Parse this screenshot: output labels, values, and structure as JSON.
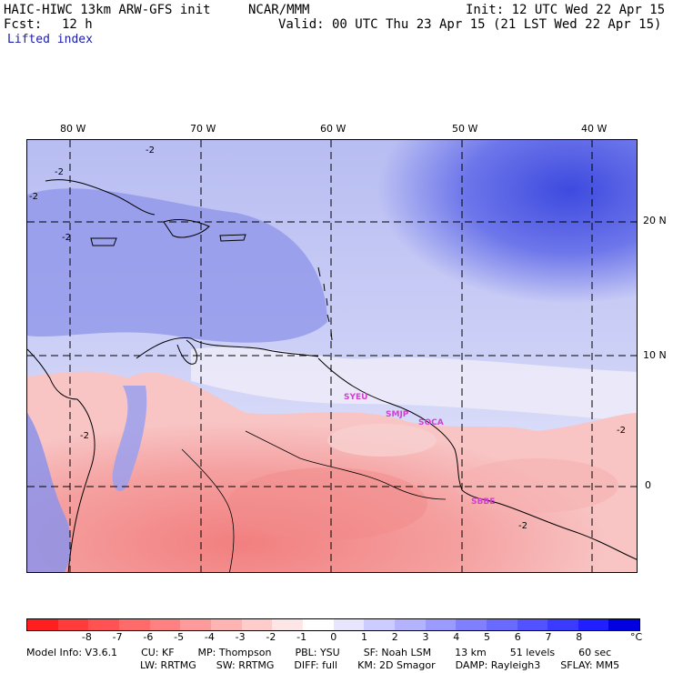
{
  "header": {
    "model": "HAIC-HIWC 13km ARW-GFS init",
    "org": "NCAR/MMM",
    "init": "Init: 12 UTC Wed 22 Apr 15",
    "fcst_label": "Fcst:",
    "fcst_value": "12 h",
    "valid": "Valid: 00 UTC Thu 23 Apr 15 (21 LST Wed 22 Apr 15)",
    "field": "Lifted index"
  },
  "map": {
    "lon_labels": [
      "80 W",
      "70 W",
      "60 W",
      "50 W",
      "40 W"
    ],
    "lat_labels": [
      "20 N",
      "10 N",
      "0"
    ],
    "contour_labels": [
      "-2",
      "-2",
      "-2",
      "-2",
      "-2",
      "-2",
      "-2"
    ],
    "stations": [
      "SYEU",
      "SMJP",
      "SOCA",
      "SBBE"
    ]
  },
  "colorbar": {
    "colors": [
      "#ff1f1f",
      "#ff3b3b",
      "#ff5252",
      "#ff6a6a",
      "#ff8080",
      "#ff9a9a",
      "#ffb3b3",
      "#ffcccc",
      "#ffe6e6",
      "#ffffff",
      "#e6e6ff",
      "#ccccff",
      "#b3b3ff",
      "#9a9aff",
      "#8080ff",
      "#6a6aff",
      "#5252ff",
      "#3b3bff",
      "#1f1fff",
      "#0000e0"
    ],
    "ticks": [
      "-8",
      "-7",
      "-6",
      "-5",
      "-4",
      "-3",
      "-2",
      "-1",
      "0",
      "1",
      "2",
      "3",
      "4",
      "5",
      "6",
      "7",
      "8"
    ],
    "unit": "°C"
  },
  "footer": {
    "line1": [
      "Model Info: V3.6.1",
      "CU: KF",
      "MP: Thompson",
      "PBL: YSU",
      "SF: Noah LSM",
      "13 km",
      "51 levels",
      "60 sec"
    ],
    "line2": [
      "LW: RRTMG",
      "SW: RRTMG",
      "DIFF: full",
      "KM: 2D Smagor",
      "DAMP: Rayleigh3",
      "SFLAY: MM5"
    ]
  }
}
